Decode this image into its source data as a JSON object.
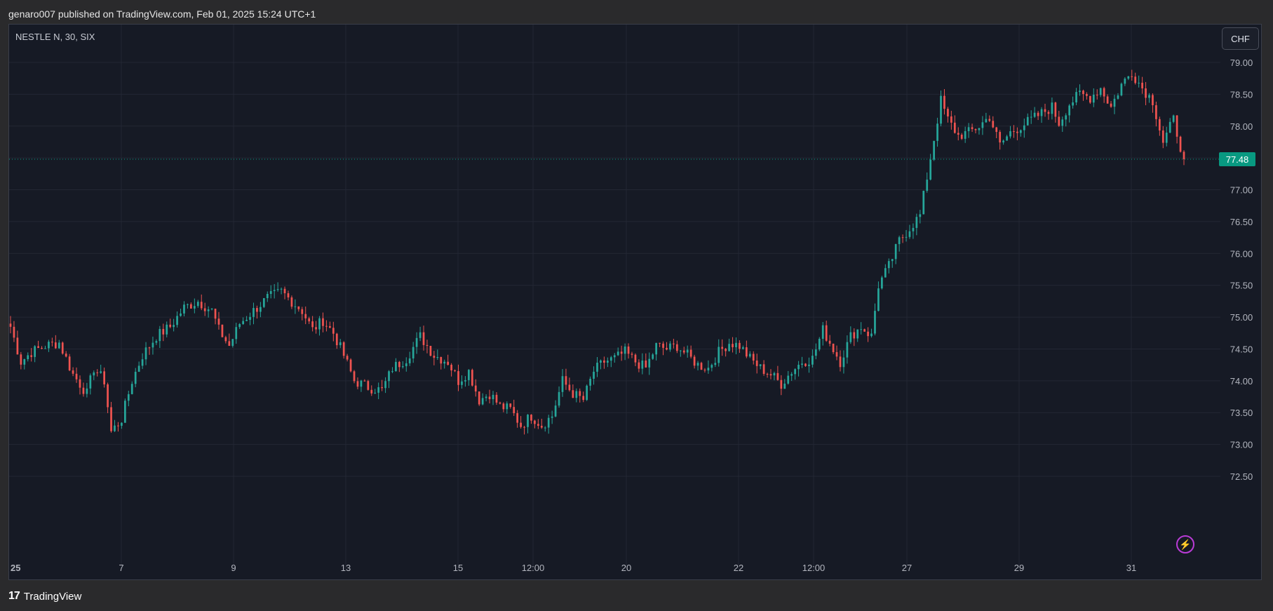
{
  "header": {
    "published": "genaro007 published on TradingView.com, Feb 01, 2025 15:24 UTC+1"
  },
  "symbol": {
    "label": "NESTLE N, 30, SIX"
  },
  "currency_button": "CHF",
  "footer": {
    "logo": "17",
    "name": "TradingView"
  },
  "colors": {
    "up": "#26a69a",
    "down": "#ef5350",
    "background": "#161a25",
    "grid": "#232734",
    "price_tag": "#089981"
  },
  "chart_data": {
    "type": "candlestick",
    "timeframe": "30",
    "ylim": [
      72.5,
      79.0
    ],
    "y_ticks": [
      "79.00",
      "78.50",
      "78.00",
      "77.50",
      "77.00",
      "76.50",
      "76.00",
      "75.50",
      "75.00",
      "74.50",
      "74.00",
      "73.50",
      "73.00",
      "72.50"
    ],
    "x_ticks": [
      "25",
      "7",
      "9",
      "13",
      "15",
      "12:00",
      "20",
      "22",
      "12:00",
      "27",
      "29",
      "31"
    ],
    "last_price": "77.48",
    "close_path": [
      [
        0,
        74.85
      ],
      [
        3,
        74.3
      ],
      [
        6,
        74.45
      ],
      [
        10,
        74.55
      ],
      [
        14,
        74.6
      ],
      [
        18,
        74.1
      ],
      [
        22,
        73.8
      ],
      [
        24,
        74.2
      ],
      [
        27,
        74.0
      ],
      [
        29,
        73.2
      ],
      [
        32,
        73.4
      ],
      [
        35,
        74.0
      ],
      [
        38,
        74.4
      ],
      [
        42,
        74.7
      ],
      [
        46,
        74.85
      ],
      [
        50,
        75.15
      ],
      [
        54,
        75.25
      ],
      [
        58,
        75.1
      ],
      [
        60,
        74.8
      ],
      [
        63,
        74.55
      ],
      [
        66,
        74.9
      ],
      [
        70,
        75.1
      ],
      [
        74,
        75.3
      ],
      [
        78,
        75.4
      ],
      [
        82,
        75.2
      ],
      [
        84,
        75.1
      ],
      [
        87,
        74.8
      ],
      [
        90,
        74.95
      ],
      [
        93,
        74.75
      ],
      [
        96,
        74.4
      ],
      [
        99,
        74.0
      ],
      [
        103,
        73.9
      ],
      [
        107,
        73.85
      ],
      [
        110,
        74.2
      ],
      [
        114,
        74.35
      ],
      [
        118,
        74.7
      ],
      [
        122,
        74.4
      ],
      [
        126,
        74.3
      ],
      [
        129,
        74.0
      ],
      [
        132,
        74.15
      ],
      [
        135,
        73.7
      ],
      [
        138,
        73.8
      ],
      [
        141,
        73.6
      ],
      [
        144,
        73.55
      ],
      [
        147,
        73.3
      ],
      [
        150,
        73.45
      ],
      [
        153,
        73.3
      ],
      [
        156,
        73.45
      ],
      [
        159,
        74.0
      ],
      [
        162,
        73.8
      ],
      [
        165,
        73.7
      ],
      [
        168,
        74.15
      ],
      [
        171,
        74.3
      ],
      [
        174,
        74.35
      ],
      [
        177,
        74.45
      ],
      [
        180,
        74.3
      ],
      [
        183,
        74.2
      ],
      [
        186,
        74.55
      ],
      [
        189,
        74.5
      ],
      [
        192,
        74.55
      ],
      [
        195,
        74.4
      ],
      [
        198,
        74.25
      ],
      [
        201,
        74.2
      ],
      [
        204,
        74.45
      ],
      [
        207,
        74.6
      ],
      [
        210,
        74.55
      ],
      [
        213,
        74.35
      ],
      [
        216,
        74.2
      ],
      [
        219,
        74.1
      ],
      [
        222,
        73.95
      ],
      [
        225,
        74.15
      ],
      [
        228,
        74.3
      ],
      [
        231,
        74.35
      ],
      [
        234,
        74.8
      ],
      [
        236,
        74.6
      ],
      [
        239,
        74.3
      ],
      [
        242,
        74.7
      ],
      [
        245,
        74.85
      ],
      [
        248,
        74.7
      ],
      [
        250,
        75.5
      ],
      [
        253,
        75.8
      ],
      [
        256,
        76.2
      ],
      [
        259,
        76.4
      ],
      [
        262,
        76.6
      ],
      [
        264,
        77.2
      ],
      [
        266,
        77.8
      ],
      [
        268,
        78.4
      ],
      [
        270,
        78.1
      ],
      [
        273,
        77.85
      ],
      [
        276,
        77.9
      ],
      [
        279,
        78.0
      ],
      [
        282,
        78.15
      ],
      [
        285,
        77.7
      ],
      [
        288,
        77.9
      ],
      [
        291,
        78.0
      ],
      [
        294,
        78.1
      ],
      [
        297,
        78.2
      ],
      [
        300,
        78.3
      ],
      [
        302,
        78.05
      ],
      [
        305,
        78.35
      ],
      [
        308,
        78.5
      ],
      [
        311,
        78.45
      ],
      [
        314,
        78.6
      ],
      [
        317,
        78.3
      ],
      [
        320,
        78.65
      ],
      [
        323,
        78.85
      ],
      [
        326,
        78.6
      ],
      [
        329,
        78.4
      ],
      [
        332,
        77.75
      ],
      [
        335,
        78.1
      ],
      [
        338,
        77.48
      ]
    ]
  }
}
